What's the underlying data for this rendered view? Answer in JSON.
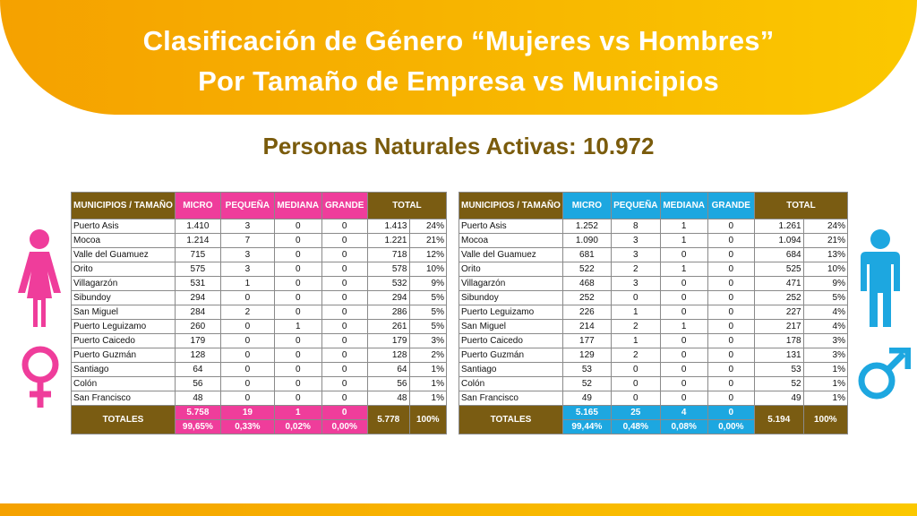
{
  "header": {
    "title_line1": "Clasificación de Género “Mujeres vs Hombres”",
    "title_line2": "Por Tamaño de Empresa vs Municipios"
  },
  "subtitle": "Personas Naturales Activas: 10.972",
  "colors": {
    "women": "#ef3d9b",
    "men": "#1da7e0",
    "header_brown": "#7a5c12",
    "banner": "#f7b400"
  },
  "icons": {
    "women_figure": "female-figure-icon",
    "women_symbol": "female-symbol-icon",
    "men_figure": "male-figure-icon",
    "men_symbol": "male-symbol-icon"
  },
  "women": {
    "headers": {
      "municipio": "MUNICIPIOS / TAMAÑO",
      "micro": "MICRO",
      "pequena": "PEQUEÑA",
      "mediana": "MEDIANA",
      "grande": "GRANDE",
      "total": "TOTAL"
    },
    "rows": [
      {
        "municipio": "Puerto Asis",
        "micro": "1.410",
        "pequena": "3",
        "mediana": "0",
        "grande": "0",
        "total": "1.413",
        "pct": "24%"
      },
      {
        "municipio": "Mocoa",
        "micro": "1.214",
        "pequena": "7",
        "mediana": "0",
        "grande": "0",
        "total": "1.221",
        "pct": "21%"
      },
      {
        "municipio": "Valle del Guamuez",
        "micro": "715",
        "pequena": "3",
        "mediana": "0",
        "grande": "0",
        "total": "718",
        "pct": "12%"
      },
      {
        "municipio": "Orito",
        "micro": "575",
        "pequena": "3",
        "mediana": "0",
        "grande": "0",
        "total": "578",
        "pct": "10%"
      },
      {
        "municipio": "Villagarzón",
        "micro": "531",
        "pequena": "1",
        "mediana": "0",
        "grande": "0",
        "total": "532",
        "pct": "9%"
      },
      {
        "municipio": "Sibundoy",
        "micro": "294",
        "pequena": "0",
        "mediana": "0",
        "grande": "0",
        "total": "294",
        "pct": "5%"
      },
      {
        "municipio": "San Miguel",
        "micro": "284",
        "pequena": "2",
        "mediana": "0",
        "grande": "0",
        "total": "286",
        "pct": "5%"
      },
      {
        "municipio": "Puerto Leguizamo",
        "micro": "260",
        "pequena": "0",
        "mediana": "1",
        "grande": "0",
        "total": "261",
        "pct": "5%"
      },
      {
        "municipio": "Puerto Caicedo",
        "micro": "179",
        "pequena": "0",
        "mediana": "0",
        "grande": "0",
        "total": "179",
        "pct": "3%"
      },
      {
        "municipio": "Puerto Guzmán",
        "micro": "128",
        "pequena": "0",
        "mediana": "0",
        "grande": "0",
        "total": "128",
        "pct": "2%"
      },
      {
        "municipio": "Santiago",
        "micro": "64",
        "pequena": "0",
        "mediana": "0",
        "grande": "0",
        "total": "64",
        "pct": "1%"
      },
      {
        "municipio": "Colón",
        "micro": "56",
        "pequena": "0",
        "mediana": "0",
        "grande": "0",
        "total": "56",
        "pct": "1%"
      },
      {
        "municipio": "San Francisco",
        "micro": "48",
        "pequena": "0",
        "mediana": "0",
        "grande": "0",
        "total": "48",
        "pct": "1%"
      }
    ],
    "totals": {
      "label": "TOTALES",
      "micro": "5.758",
      "pequena": "19",
      "mediana": "1",
      "grande": "0",
      "micro_pct": "99,65%",
      "pequena_pct": "0,33%",
      "mediana_pct": "0,02%",
      "grande_pct": "0,00%",
      "total": "5.778",
      "total_pct": "100%"
    }
  },
  "men": {
    "headers": {
      "municipio": "MUNICIPIOS / TAMAÑO",
      "micro": "MICRO",
      "pequena": "PEQUEÑA",
      "mediana": "MEDIANA",
      "grande": "GRANDE",
      "total": "TOTAL"
    },
    "rows": [
      {
        "municipio": "Puerto Asis",
        "micro": "1.252",
        "pequena": "8",
        "mediana": "1",
        "grande": "0",
        "total": "1.261",
        "pct": "24%"
      },
      {
        "municipio": "Mocoa",
        "micro": "1.090",
        "pequena": "3",
        "mediana": "1",
        "grande": "0",
        "total": "1.094",
        "pct": "21%"
      },
      {
        "municipio": "Valle del Guamuez",
        "micro": "681",
        "pequena": "3",
        "mediana": "0",
        "grande": "0",
        "total": "684",
        "pct": "13%"
      },
      {
        "municipio": "Orito",
        "micro": "522",
        "pequena": "2",
        "mediana": "1",
        "grande": "0",
        "total": "525",
        "pct": "10%"
      },
      {
        "municipio": "Villagarzón",
        "micro": "468",
        "pequena": "3",
        "mediana": "0",
        "grande": "0",
        "total": "471",
        "pct": "9%"
      },
      {
        "municipio": "Sibundoy",
        "micro": "252",
        "pequena": "0",
        "mediana": "0",
        "grande": "0",
        "total": "252",
        "pct": "5%"
      },
      {
        "municipio": "Puerto Leguizamo",
        "micro": "226",
        "pequena": "1",
        "mediana": "0",
        "grande": "0",
        "total": "227",
        "pct": "4%"
      },
      {
        "municipio": "San Miguel",
        "micro": "214",
        "pequena": "2",
        "mediana": "1",
        "grande": "0",
        "total": "217",
        "pct": "4%"
      },
      {
        "municipio": "Puerto Caicedo",
        "micro": "177",
        "pequena": "1",
        "mediana": "0",
        "grande": "0",
        "total": "178",
        "pct": "3%"
      },
      {
        "municipio": "Puerto Guzmán",
        "micro": "129",
        "pequena": "2",
        "mediana": "0",
        "grande": "0",
        "total": "131",
        "pct": "3%"
      },
      {
        "municipio": "Santiago",
        "micro": "53",
        "pequena": "0",
        "mediana": "0",
        "grande": "0",
        "total": "53",
        "pct": "1%"
      },
      {
        "municipio": "Colón",
        "micro": "52",
        "pequena": "0",
        "mediana": "0",
        "grande": "0",
        "total": "52",
        "pct": "1%"
      },
      {
        "municipio": "San Francisco",
        "micro": "49",
        "pequena": "0",
        "mediana": "0",
        "grande": "0",
        "total": "49",
        "pct": "1%"
      }
    ],
    "totals": {
      "label": "TOTALES",
      "micro": "5.165",
      "pequena": "25",
      "mediana": "4",
      "grande": "0",
      "micro_pct": "99,44%",
      "pequena_pct": "0,48%",
      "mediana_pct": "0,08%",
      "grande_pct": "0,00%",
      "total": "5.194",
      "total_pct": "100%"
    }
  }
}
